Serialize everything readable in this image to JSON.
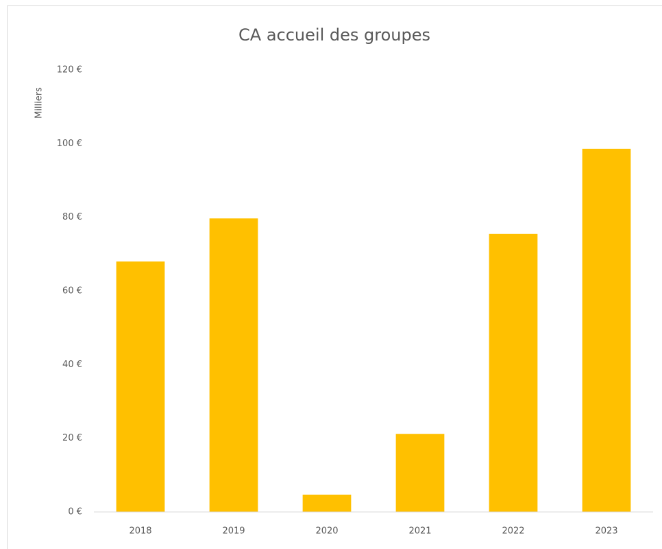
{
  "chart_data": {
    "type": "bar",
    "title": "CA accueil des groupes",
    "y_label": "Milliers",
    "categories": [
      "2018",
      "2019",
      "2020",
      "2021",
      "2022",
      "2023"
    ],
    "values": [
      68.0,
      79.7,
      4.7,
      21.2,
      75.5,
      98.6
    ],
    "color": "#ffc000",
    "ylim": [
      0,
      120
    ],
    "yticks": [
      {
        "value": 0,
        "label": "0 €"
      },
      {
        "value": 20,
        "label": "20 €"
      },
      {
        "value": 40,
        "label": "40 €"
      },
      {
        "value": 60,
        "label": "60 €"
      },
      {
        "value": 80,
        "label": "80 €"
      },
      {
        "value": 100,
        "label": "100 €"
      },
      {
        "value": 120,
        "label": "120 €"
      }
    ],
    "grid": false
  }
}
